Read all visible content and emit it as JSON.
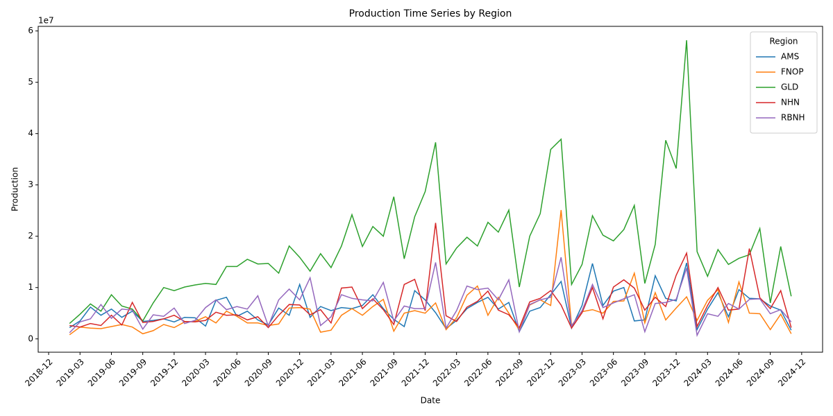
{
  "chart_data": {
    "type": "line",
    "title": "Production Time Series by Region",
    "x_label": "Date",
    "y_label": "Production",
    "y_offset_label": "1e7",
    "legend_title": "Region",
    "legend_loc": "upper right",
    "x": [
      "2019-01",
      "2019-02",
      "2019-03",
      "2019-04",
      "2019-05",
      "2019-06",
      "2019-07",
      "2019-08",
      "2019-09",
      "2019-10",
      "2019-11",
      "2019-12",
      "2020-01",
      "2020-02",
      "2020-03",
      "2020-04",
      "2020-05",
      "2020-06",
      "2020-07",
      "2020-08",
      "2020-09",
      "2020-10",
      "2020-11",
      "2020-12",
      "2021-01",
      "2021-02",
      "2021-03",
      "2021-04",
      "2021-05",
      "2021-06",
      "2021-07",
      "2021-08",
      "2021-09",
      "2021-10",
      "2021-11",
      "2021-12",
      "2022-01",
      "2022-02",
      "2022-03",
      "2022-04",
      "2022-05",
      "2022-06",
      "2022-07",
      "2022-08",
      "2022-09",
      "2022-10",
      "2022-11",
      "2022-12",
      "2023-01",
      "2023-02",
      "2023-03",
      "2023-04",
      "2023-05",
      "2023-06",
      "2023-07",
      "2023-08",
      "2023-09",
      "2023-10",
      "2023-11",
      "2023-12",
      "2024-01",
      "2024-02",
      "2024-03",
      "2024-04",
      "2024-05",
      "2024-06",
      "2024-07",
      "2024-08",
      "2024-09",
      "2024-10"
    ],
    "xlim": [
      "2018-11",
      "2025-02"
    ],
    "xticks": [
      "2018-12",
      "2019-03",
      "2019-06",
      "2019-09",
      "2019-12",
      "2020-03",
      "2020-06",
      "2020-09",
      "2020-12",
      "2021-03",
      "2021-06",
      "2021-09",
      "2021-12",
      "2022-03",
      "2022-06",
      "2022-09",
      "2022-12",
      "2023-03",
      "2023-06",
      "2023-09",
      "2023-12",
      "2024-03",
      "2024-06",
      "2024-09",
      "2024-12"
    ],
    "ylim": [
      -0.26,
      6.09
    ],
    "yticks": [
      0,
      1,
      2,
      3,
      4,
      5,
      6
    ],
    "series": [
      {
        "name": "AMS",
        "color": "#1f77b4",
        "values": [
          0.22,
          0.35,
          0.62,
          0.46,
          0.58,
          0.42,
          0.54,
          0.34,
          0.36,
          0.39,
          0.33,
          0.42,
          0.41,
          0.25,
          0.75,
          0.81,
          0.44,
          0.54,
          0.37,
          0.27,
          0.6,
          0.46,
          1.06,
          0.42,
          0.63,
          0.55,
          0.61,
          0.59,
          0.65,
          0.86,
          0.59,
          0.38,
          0.24,
          0.94,
          0.76,
          0.51,
          0.2,
          0.36,
          0.59,
          0.71,
          0.81,
          0.58,
          0.71,
          0.14,
          0.54,
          0.61,
          0.86,
          1.12,
          0.21,
          0.65,
          1.47,
          0.65,
          0.93,
          1.0,
          0.35,
          0.37,
          1.23,
          0.79,
          0.74,
          1.48,
          0.18,
          0.58,
          0.9,
          0.43,
          0.96,
          0.79,
          0.78,
          0.64,
          0.56,
          0.17
        ]
      },
      {
        "name": "FNOP",
        "color": "#ff7f0e",
        "values": [
          0.08,
          0.23,
          0.21,
          0.2,
          0.24,
          0.28,
          0.23,
          0.1,
          0.16,
          0.28,
          0.22,
          0.33,
          0.34,
          0.43,
          0.31,
          0.54,
          0.44,
          0.31,
          0.31,
          0.26,
          0.29,
          0.6,
          0.61,
          0.58,
          0.13,
          0.17,
          0.46,
          0.59,
          0.46,
          0.63,
          0.77,
          0.15,
          0.5,
          0.55,
          0.5,
          0.7,
          0.18,
          0.41,
          0.85,
          1.03,
          0.46,
          0.81,
          0.5,
          0.17,
          0.66,
          0.76,
          0.65,
          2.51,
          0.26,
          0.53,
          0.57,
          0.5,
          0.73,
          0.74,
          1.28,
          0.31,
          0.9,
          0.37,
          0.6,
          0.82,
          0.36,
          0.75,
          0.96,
          0.32,
          1.11,
          0.5,
          0.49,
          0.18,
          0.48,
          0.1
        ]
      },
      {
        "name": "GLD",
        "color": "#2ca02c",
        "values": [
          0.3,
          0.48,
          0.68,
          0.54,
          0.86,
          0.64,
          0.58,
          0.35,
          0.7,
          1.0,
          0.94,
          1.01,
          1.05,
          1.08,
          1.06,
          1.41,
          1.41,
          1.55,
          1.46,
          1.47,
          1.28,
          1.81,
          1.59,
          1.32,
          1.66,
          1.39,
          1.81,
          2.42,
          1.8,
          2.19,
          2.0,
          2.77,
          1.56,
          2.38,
          2.87,
          3.83,
          1.46,
          1.77,
          1.98,
          1.81,
          2.27,
          2.08,
          2.51,
          1.01,
          2.0,
          2.44,
          3.69,
          3.89,
          1.06,
          1.45,
          2.4,
          2.02,
          1.91,
          2.13,
          2.6,
          1.08,
          1.84,
          3.87,
          3.32,
          5.82,
          1.7,
          1.22,
          1.74,
          1.45,
          1.57,
          1.64,
          2.15,
          0.7,
          1.8,
          0.83
        ]
      },
      {
        "name": "NHN",
        "color": "#d62728",
        "values": [
          0.26,
          0.23,
          0.3,
          0.26,
          0.46,
          0.27,
          0.71,
          0.32,
          0.34,
          0.39,
          0.46,
          0.34,
          0.33,
          0.36,
          0.52,
          0.46,
          0.47,
          0.37,
          0.43,
          0.22,
          0.46,
          0.67,
          0.66,
          0.47,
          0.57,
          0.31,
          0.99,
          1.01,
          0.59,
          0.78,
          0.57,
          0.28,
          1.06,
          1.16,
          0.55,
          2.26,
          0.45,
          0.34,
          0.62,
          0.73,
          0.93,
          0.56,
          0.47,
          0.22,
          0.72,
          0.79,
          0.94,
          0.66,
          0.21,
          0.51,
          1.0,
          0.39,
          1.01,
          1.15,
          0.99,
          0.56,
          0.81,
          0.63,
          1.24,
          1.67,
          0.24,
          0.65,
          1.0,
          0.56,
          0.58,
          1.76,
          0.8,
          0.59,
          0.94,
          0.22
        ]
      },
      {
        "name": "RBNH",
        "color": "#9467bd",
        "values": [
          0.12,
          0.33,
          0.39,
          0.67,
          0.4,
          0.58,
          0.56,
          0.19,
          0.47,
          0.44,
          0.6,
          0.3,
          0.36,
          0.61,
          0.76,
          0.57,
          0.63,
          0.58,
          0.84,
          0.25,
          0.76,
          0.97,
          0.76,
          1.19,
          0.26,
          0.43,
          0.86,
          0.79,
          0.76,
          0.74,
          1.1,
          0.35,
          0.64,
          0.59,
          0.59,
          1.49,
          0.21,
          0.55,
          1.03,
          0.96,
          0.99,
          0.76,
          1.15,
          0.14,
          0.67,
          0.76,
          0.81,
          1.59,
          0.25,
          0.55,
          1.06,
          0.61,
          0.7,
          0.78,
          0.86,
          0.14,
          0.69,
          0.71,
          0.77,
          1.38,
          0.07,
          0.49,
          0.44,
          0.69,
          0.58,
          0.77,
          0.78,
          0.49,
          0.57,
          0.33
        ]
      }
    ]
  }
}
